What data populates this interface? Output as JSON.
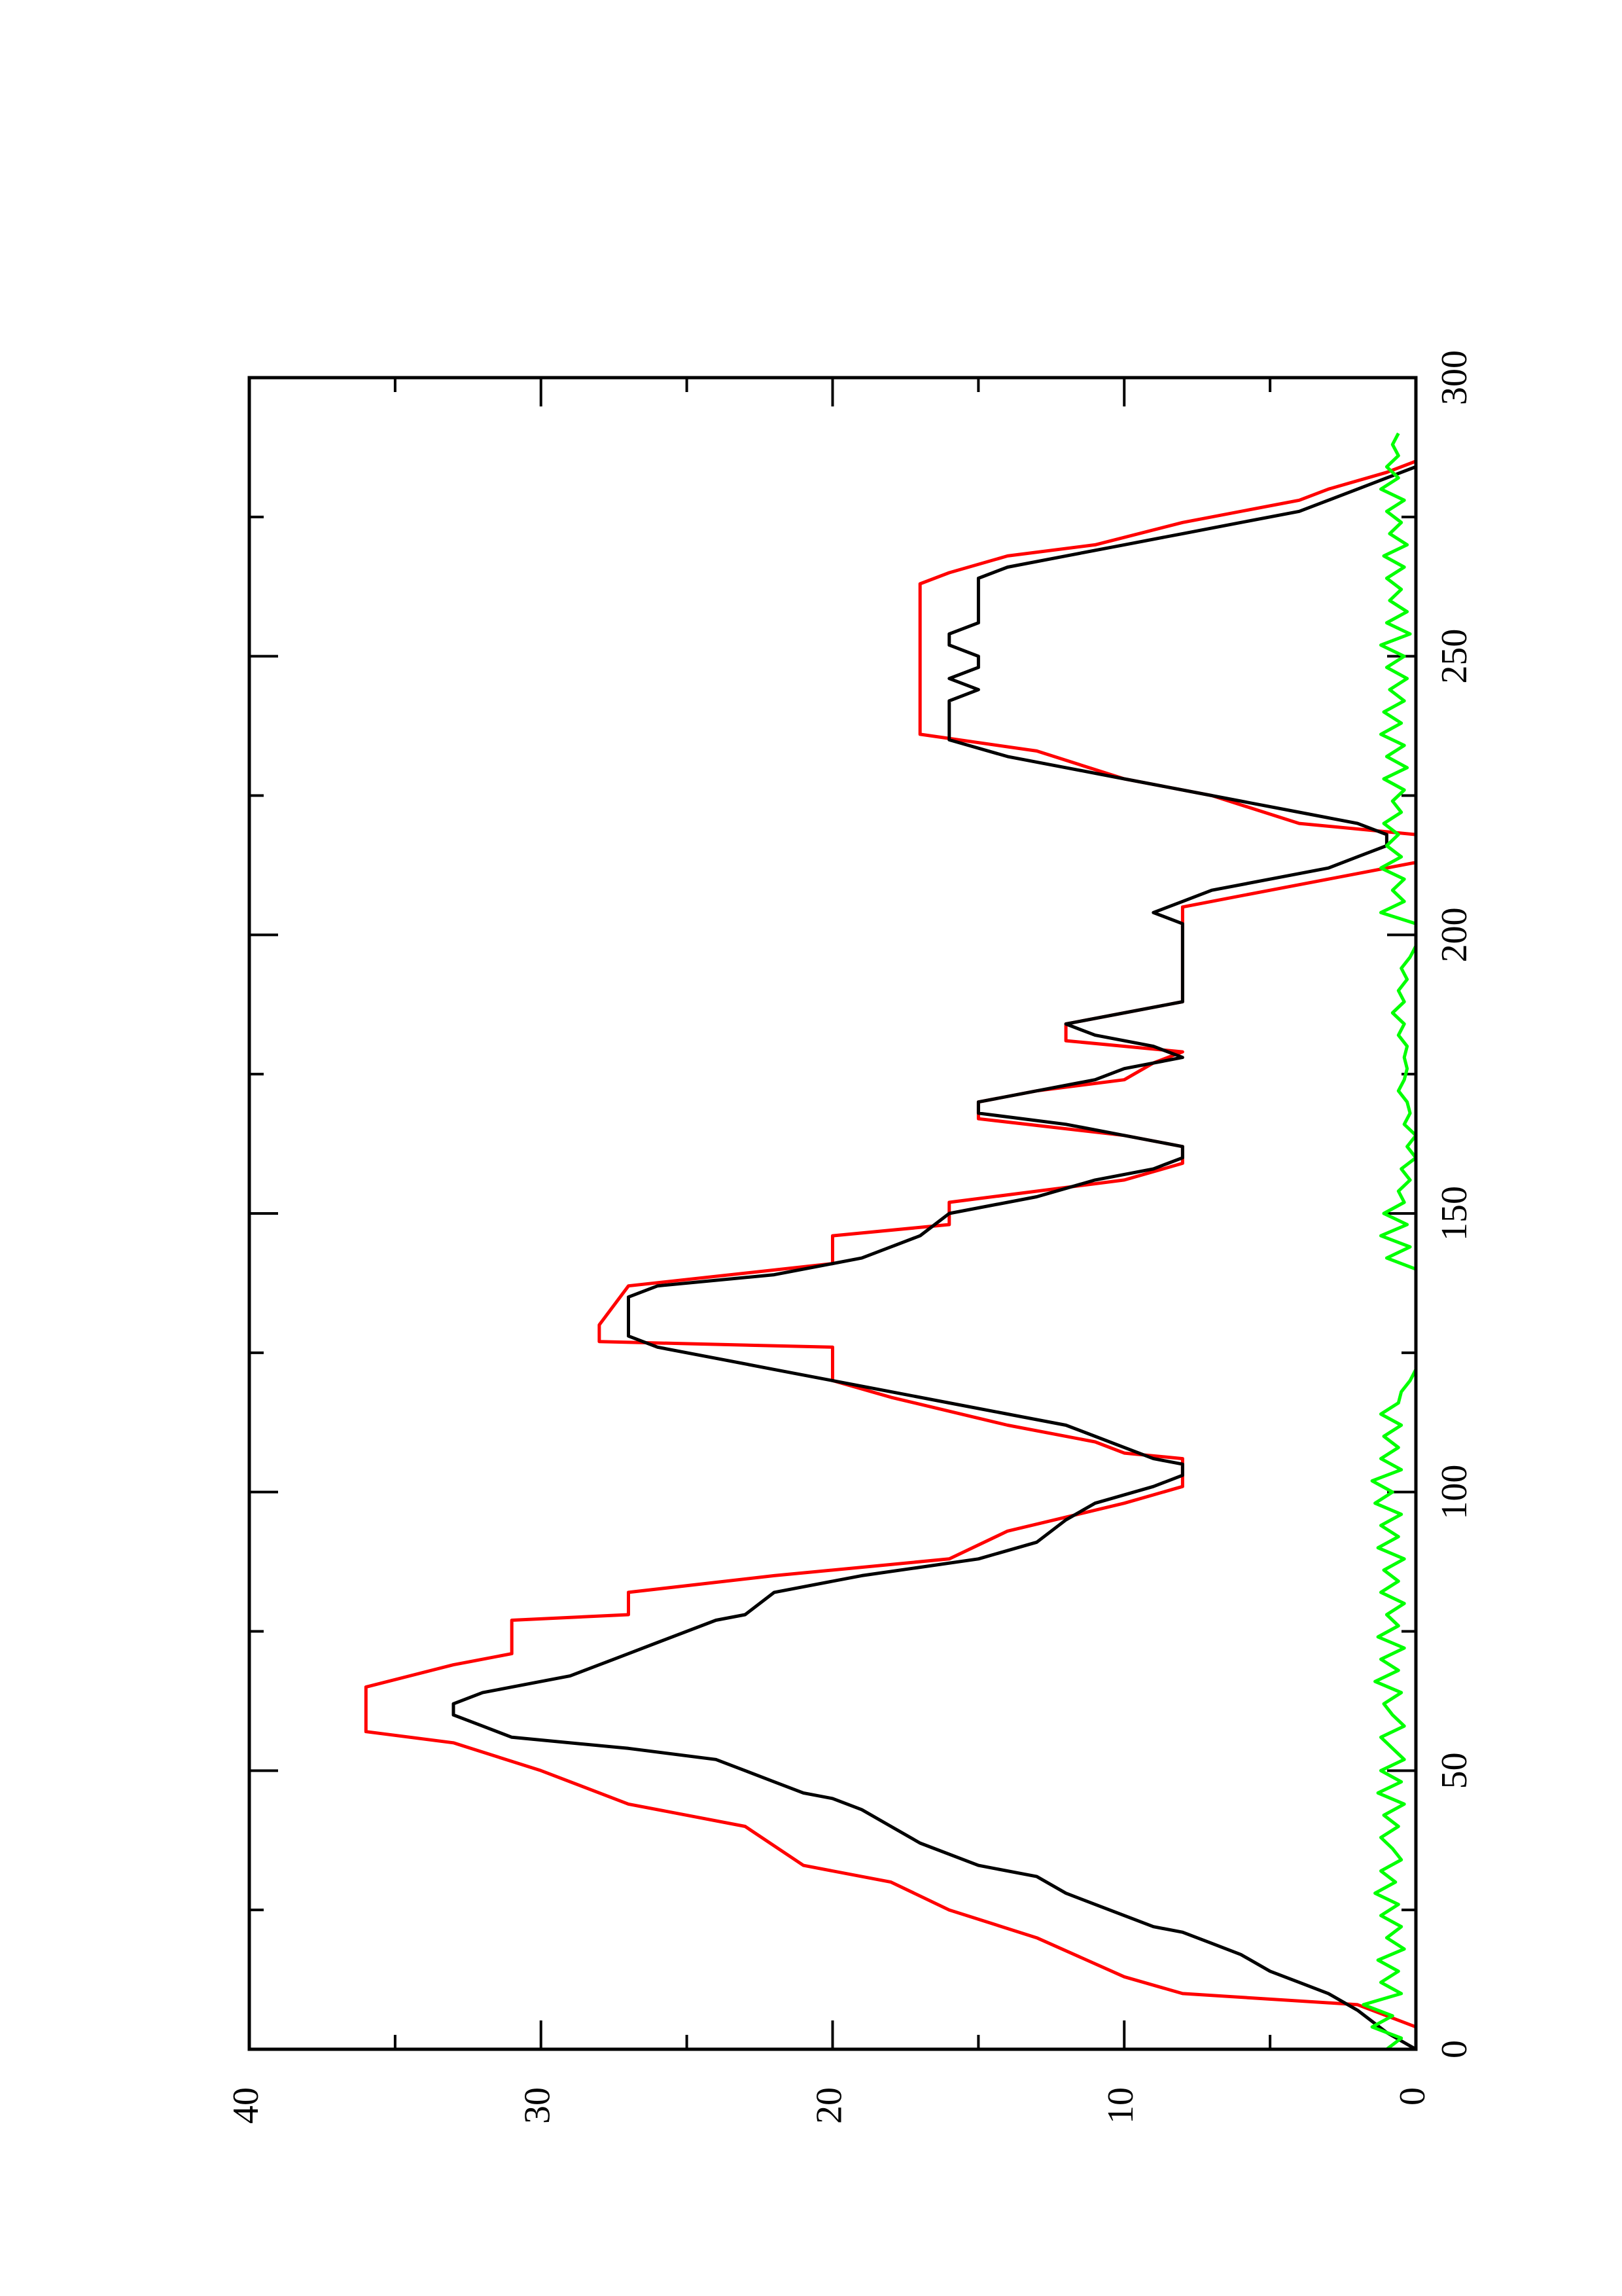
{
  "chart_data": {
    "type": "line",
    "orientation": "rotated 90° counter-clockwise (x axis runs bottom-to-top along the right edge)",
    "xlim": [
      0,
      300
    ],
    "ylim": [
      0,
      40
    ],
    "x_major_ticks": [
      0,
      50,
      100,
      150,
      200,
      250,
      300
    ],
    "x_minor_ticks": [
      25,
      75,
      125,
      175,
      225,
      275
    ],
    "y_major_ticks": [
      0,
      10,
      20,
      30,
      40
    ],
    "y_minor_ticks": [
      5,
      15,
      25,
      35
    ],
    "x_tick_labels": [
      "0",
      "50",
      "100",
      "150",
      "200",
      "250",
      "300"
    ],
    "y_tick_labels": [
      "0",
      "10",
      "20",
      "30",
      "40"
    ],
    "grid": false,
    "series": [
      {
        "color": "#ff0000",
        "points": [
          [
            0,
            0
          ],
          [
            4,
            0
          ],
          [
            8,
            2
          ],
          [
            10,
            8
          ],
          [
            13,
            10
          ],
          [
            20,
            13
          ],
          [
            25,
            16
          ],
          [
            30,
            18
          ],
          [
            33,
            21
          ],
          [
            40,
            23
          ],
          [
            44,
            27
          ],
          [
            50,
            30
          ],
          [
            55,
            33
          ],
          [
            57,
            36
          ],
          [
            65,
            36
          ],
          [
            69,
            33
          ],
          [
            71,
            31
          ],
          [
            77,
            31
          ],
          [
            78,
            27
          ],
          [
            82,
            27
          ],
          [
            85,
            22
          ],
          [
            88,
            16
          ],
          [
            93,
            14
          ],
          [
            98,
            10
          ],
          [
            101,
            8
          ],
          [
            105,
            8
          ],
          [
            106,
            8
          ],
          [
            107,
            10
          ],
          [
            109,
            11
          ],
          [
            112,
            14
          ],
          [
            117,
            18
          ],
          [
            120,
            20
          ],
          [
            126,
            20
          ],
          [
            127,
            28
          ],
          [
            130,
            28
          ],
          [
            137,
            27
          ],
          [
            141,
            20
          ],
          [
            146,
            20
          ],
          [
            148,
            16
          ],
          [
            152,
            16
          ],
          [
            156,
            10
          ],
          [
            159,
            8
          ],
          [
            162,
            8
          ],
          [
            164,
            10
          ],
          [
            167,
            15
          ],
          [
            170,
            15
          ],
          [
            172,
            13
          ],
          [
            174,
            10
          ],
          [
            177,
            9
          ],
          [
            179,
            8
          ],
          [
            181,
            12
          ],
          [
            184,
            12
          ],
          [
            186,
            10
          ],
          [
            188,
            8
          ],
          [
            203,
            8
          ],
          [
            205,
            8
          ],
          [
            207,
            6
          ],
          [
            209,
            4
          ],
          [
            213,
            0
          ],
          [
            216,
            0
          ],
          [
            218,
            0
          ],
          [
            220,
            4
          ],
          [
            225,
            7
          ],
          [
            228,
            10
          ],
          [
            233,
            13
          ],
          [
            236,
            17
          ],
          [
            263,
            17
          ],
          [
            265,
            16
          ],
          [
            268,
            14
          ],
          [
            270,
            11
          ],
          [
            274,
            8
          ],
          [
            278,
            4
          ],
          [
            280,
            3
          ],
          [
            283,
            1
          ],
          [
            285,
            0
          ]
        ]
      },
      {
        "color": "#000000",
        "points": [
          [
            0,
            0
          ],
          [
            3,
            1
          ],
          [
            7,
            2
          ],
          [
            10,
            3
          ],
          [
            12,
            4
          ],
          [
            14,
            5
          ],
          [
            17,
            6
          ],
          [
            19,
            7
          ],
          [
            21,
            8
          ],
          [
            22,
            9
          ],
          [
            26,
            11
          ],
          [
            28,
            12
          ],
          [
            31,
            13
          ],
          [
            33,
            15
          ],
          [
            37,
            17
          ],
          [
            40,
            18
          ],
          [
            43,
            19
          ],
          [
            45,
            20
          ],
          [
            46,
            21
          ],
          [
            48,
            22
          ],
          [
            50,
            23
          ],
          [
            52,
            24
          ],
          [
            54,
            27
          ],
          [
            56,
            31
          ],
          [
            58,
            32
          ],
          [
            60,
            33
          ],
          [
            62,
            33
          ],
          [
            64,
            32
          ],
          [
            65,
            31
          ],
          [
            67,
            29
          ],
          [
            69,
            28
          ],
          [
            71,
            27
          ],
          [
            73,
            26
          ],
          [
            77,
            24
          ],
          [
            78,
            23
          ],
          [
            82,
            22
          ],
          [
            85,
            19
          ],
          [
            88,
            15
          ],
          [
            91,
            13
          ],
          [
            95,
            12
          ],
          [
            98,
            11
          ],
          [
            101,
            9
          ],
          [
            103,
            8
          ],
          [
            105,
            8
          ],
          [
            106,
            9
          ],
          [
            108,
            10
          ],
          [
            110,
            11
          ],
          [
            112,
            12
          ],
          [
            114,
            14
          ],
          [
            116,
            16
          ],
          [
            118,
            18
          ],
          [
            120,
            20
          ],
          [
            122,
            22
          ],
          [
            124,
            24
          ],
          [
            126,
            26
          ],
          [
            128,
            27
          ],
          [
            135,
            27
          ],
          [
            137,
            26
          ],
          [
            139,
            22
          ],
          [
            142,
            19
          ],
          [
            144,
            18
          ],
          [
            146,
            17
          ],
          [
            150,
            16
          ],
          [
            153,
            13
          ],
          [
            156,
            11
          ],
          [
            158,
            9
          ],
          [
            160,
            8
          ],
          [
            162,
            8
          ],
          [
            164,
            10
          ],
          [
            166,
            12
          ],
          [
            168,
            15
          ],
          [
            170,
            15
          ],
          [
            172,
            13
          ],
          [
            174,
            11
          ],
          [
            176,
            10
          ],
          [
            178,
            8
          ],
          [
            180,
            9
          ],
          [
            182,
            11
          ],
          [
            184,
            12
          ],
          [
            186,
            10
          ],
          [
            188,
            8
          ],
          [
            202,
            8
          ],
          [
            204,
            9
          ],
          [
            206,
            8
          ],
          [
            208,
            7
          ],
          [
            210,
            5
          ],
          [
            212,
            3
          ],
          [
            214,
            2
          ],
          [
            216,
            1
          ],
          [
            218,
            1
          ],
          [
            220,
            2
          ],
          [
            222,
            4
          ],
          [
            224,
            6
          ],
          [
            226,
            8
          ],
          [
            228,
            10
          ],
          [
            230,
            12
          ],
          [
            232,
            14
          ],
          [
            235,
            16
          ],
          [
            238,
            16
          ],
          [
            240,
            16
          ],
          [
            242,
            16
          ],
          [
            244,
            15
          ],
          [
            246,
            16
          ],
          [
            248,
            15
          ],
          [
            250,
            15
          ],
          [
            252,
            16
          ],
          [
            254,
            16
          ],
          [
            256,
            15
          ],
          [
            258,
            15
          ],
          [
            262,
            15
          ],
          [
            264,
            15
          ],
          [
            266,
            14
          ],
          [
            268,
            12
          ],
          [
            270,
            10
          ],
          [
            272,
            8
          ],
          [
            274,
            6
          ],
          [
            276,
            4
          ],
          [
            278,
            3
          ],
          [
            280,
            2
          ],
          [
            282,
            1
          ],
          [
            284,
            0
          ]
        ]
      },
      {
        "color": "#00ff00",
        "points": [
          [
            0,
            1.0
          ],
          [
            2,
            0.5
          ],
          [
            4,
            1.5
          ],
          [
            6,
            0.8
          ],
          [
            8,
            1.8
          ],
          [
            10,
            0.5
          ],
          [
            12,
            1.2
          ],
          [
            14,
            0.6
          ],
          [
            16,
            1.3
          ],
          [
            18,
            0.4
          ],
          [
            20,
            1.0
          ],
          [
            22,
            0.5
          ],
          [
            24,
            1.2
          ],
          [
            26,
            0.6
          ],
          [
            28,
            1.4
          ],
          [
            30,
            0.7
          ],
          [
            32,
            1.2
          ],
          [
            34,
            0.5
          ],
          [
            36,
            0.8
          ],
          [
            38,
            1.2
          ],
          [
            40,
            0.6
          ],
          [
            42,
            1.1
          ],
          [
            44,
            0.4
          ],
          [
            46,
            1.3
          ],
          [
            48,
            0.5
          ],
          [
            50,
            1.2
          ],
          [
            52,
            0.4
          ],
          [
            54,
            0.8
          ],
          [
            56,
            1.2
          ],
          [
            58,
            0.4
          ],
          [
            60,
            0.8
          ],
          [
            62,
            1.1
          ],
          [
            64,
            0.5
          ],
          [
            66,
            1.4
          ],
          [
            68,
            0.6
          ],
          [
            70,
            1.2
          ],
          [
            72,
            0.4
          ],
          [
            74,
            1.3
          ],
          [
            76,
            0.6
          ],
          [
            78,
            1.0
          ],
          [
            80,
            0.4
          ],
          [
            82,
            1.2
          ],
          [
            84,
            0.6
          ],
          [
            86,
            1.1
          ],
          [
            88,
            0.4
          ],
          [
            90,
            1.3
          ],
          [
            92,
            0.6
          ],
          [
            94,
            1.2
          ],
          [
            96,
            0.5
          ],
          [
            98,
            1.4
          ],
          [
            100,
            0.8
          ],
          [
            102,
            1.5
          ],
          [
            104,
            0.5
          ],
          [
            106,
            1.2
          ],
          [
            108,
            0.6
          ],
          [
            110,
            1.1
          ],
          [
            112,
            0.5
          ],
          [
            114,
            1.2
          ],
          [
            116,
            0.6
          ],
          [
            118,
            0.5
          ],
          [
            120,
            0.2
          ],
          [
            122,
            0.0
          ],
          [
            140,
            0.0
          ],
          [
            142,
            1.0
          ],
          [
            144,
            0.2
          ],
          [
            146,
            1.2
          ],
          [
            148,
            0.3
          ],
          [
            150,
            1.1
          ],
          [
            152,
            0.4
          ],
          [
            154,
            0.6
          ],
          [
            156,
            0.2
          ],
          [
            158,
            0.5
          ],
          [
            160,
            0.0
          ],
          [
            162,
            0.3
          ],
          [
            164,
            0.0
          ],
          [
            166,
            0.4
          ],
          [
            168,
            0.2
          ],
          [
            170,
            0.3
          ],
          [
            172,
            0.6
          ],
          [
            174,
            0.4
          ],
          [
            176,
            0.3
          ],
          [
            178,
            0.4
          ],
          [
            180,
            0.3
          ],
          [
            182,
            0.6
          ],
          [
            184,
            0.4
          ],
          [
            186,
            0.8
          ],
          [
            188,
            0.4
          ],
          [
            190,
            0.6
          ],
          [
            192,
            0.3
          ],
          [
            194,
            0.5
          ],
          [
            196,
            0.2
          ],
          [
            198,
            0.0
          ],
          [
            202,
            0.0
          ],
          [
            204,
            1.2
          ],
          [
            206,
            0.4
          ],
          [
            208,
            0.8
          ],
          [
            210,
            0.4
          ],
          [
            212,
            1.2
          ],
          [
            214,
            0.5
          ],
          [
            216,
            1.0
          ],
          [
            218,
            0.6
          ],
          [
            220,
            1.1
          ],
          [
            222,
            0.5
          ],
          [
            224,
            0.8
          ],
          [
            226,
            0.4
          ],
          [
            228,
            1.1
          ],
          [
            230,
            0.3
          ],
          [
            232,
            1.0
          ],
          [
            234,
            0.4
          ],
          [
            236,
            1.2
          ],
          [
            238,
            0.5
          ],
          [
            240,
            1.1
          ],
          [
            242,
            0.4
          ],
          [
            244,
            0.9
          ],
          [
            246,
            0.3
          ],
          [
            248,
            1.0
          ],
          [
            250,
            0.4
          ],
          [
            252,
            1.2
          ],
          [
            254,
            0.2
          ],
          [
            256,
            1.0
          ],
          [
            258,
            0.3
          ],
          [
            260,
            0.9
          ],
          [
            262,
            0.5
          ],
          [
            264,
            1.0
          ],
          [
            266,
            0.4
          ],
          [
            268,
            1.1
          ],
          [
            270,
            0.3
          ],
          [
            272,
            0.9
          ],
          [
            274,
            0.5
          ],
          [
            276,
            1.0
          ],
          [
            278,
            0.4
          ],
          [
            280,
            1.2
          ],
          [
            282,
            0.6
          ],
          [
            284,
            1.0
          ],
          [
            286,
            0.6
          ],
          [
            288,
            0.8
          ],
          [
            290,
            0.6
          ]
        ]
      }
    ]
  }
}
